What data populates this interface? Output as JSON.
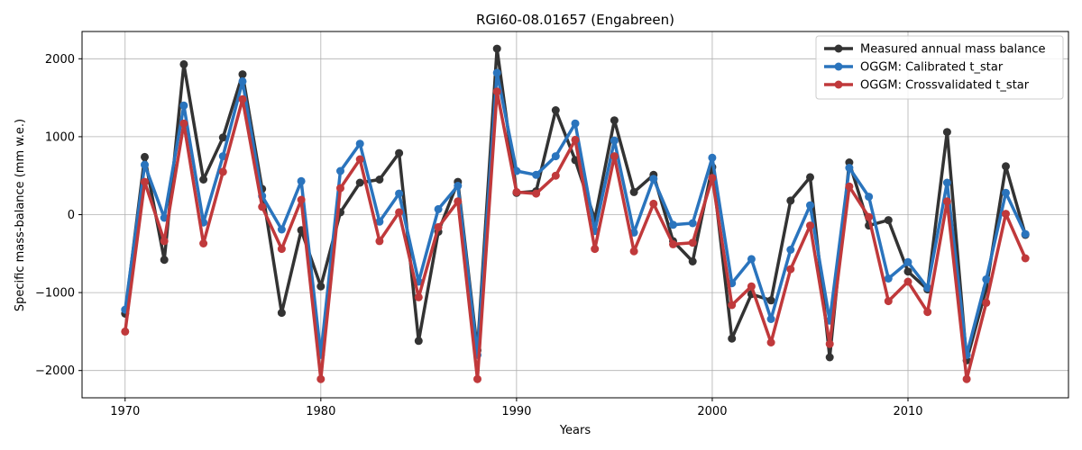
{
  "chart_data": {
    "type": "line",
    "title": "RGI60-08.01657 (Engabreen)",
    "xlabel": "Years",
    "ylabel": "Specific mass-balance (mm w.e.)",
    "xlim": [
      1967.8,
      2018.2
    ],
    "ylim": [
      -2350,
      2350
    ],
    "xticks": [
      1970,
      1980,
      1990,
      2000,
      2010
    ],
    "yticks": [
      -2000,
      -1000,
      0,
      1000,
      2000
    ],
    "ytick_labels": [
      "−2000",
      "−1000",
      "0",
      "1000",
      "2000"
    ],
    "grid": true,
    "legend_position": "top-right",
    "x": [
      1970,
      1971,
      1972,
      1973,
      1974,
      1975,
      1976,
      1977,
      1978,
      1979,
      1980,
      1981,
      1982,
      1983,
      1984,
      1985,
      1986,
      1987,
      1988,
      1989,
      1990,
      1991,
      1992,
      1993,
      1994,
      1995,
      1996,
      1997,
      1998,
      1999,
      2000,
      2001,
      2002,
      2003,
      2004,
      2005,
      2006,
      2007,
      2008,
      2009,
      2010,
      2011,
      2012,
      2013,
      2014,
      2015,
      2016
    ],
    "series": [
      {
        "name": "Measured annual mass balance",
        "color": "#333333",
        "values": [
          -1270,
          740,
          -580,
          1930,
          450,
          990,
          1800,
          330,
          -1260,
          -200,
          -920,
          30,
          410,
          450,
          790,
          -1620,
          -220,
          420,
          -1740,
          2130,
          280,
          300,
          1340,
          700,
          -60,
          1210,
          290,
          510,
          -340,
          -600,
          610,
          -1590,
          -1020,
          -1100,
          180,
          480,
          -1830,
          670,
          -140,
          -70,
          -730,
          -960,
          1060,
          -1870,
          -950,
          620,
          -260
        ]
      },
      {
        "name": "OGGM: Calibrated t_star",
        "color": "#2a74bd",
        "values": [
          -1220,
          640,
          -40,
          1400,
          -100,
          750,
          1710,
          240,
          -190,
          430,
          -1800,
          560,
          910,
          -90,
          270,
          -860,
          70,
          370,
          -1800,
          1820,
          560,
          510,
          750,
          1170,
          -210,
          950,
          -230,
          460,
          -130,
          -110,
          730,
          -880,
          -570,
          -1340,
          -450,
          120,
          -1360,
          600,
          230,
          -820,
          -610,
          -940,
          410,
          -1800,
          -830,
          280,
          -250
        ]
      },
      {
        "name": "OGGM: Crossvalidated t_star",
        "color": "#c0393b",
        "values": [
          -1500,
          420,
          -340,
          1170,
          -370,
          550,
          1480,
          100,
          -440,
          190,
          -2110,
          340,
          710,
          -340,
          30,
          -1060,
          -160,
          170,
          -2110,
          1580,
          290,
          270,
          500,
          960,
          -440,
          750,
          -470,
          140,
          -380,
          -360,
          470,
          -1160,
          -920,
          -1640,
          -700,
          -140,
          -1660,
          360,
          -30,
          -1110,
          -860,
          -1250,
          170,
          -2110,
          -1130,
          10,
          -560
        ]
      }
    ]
  }
}
